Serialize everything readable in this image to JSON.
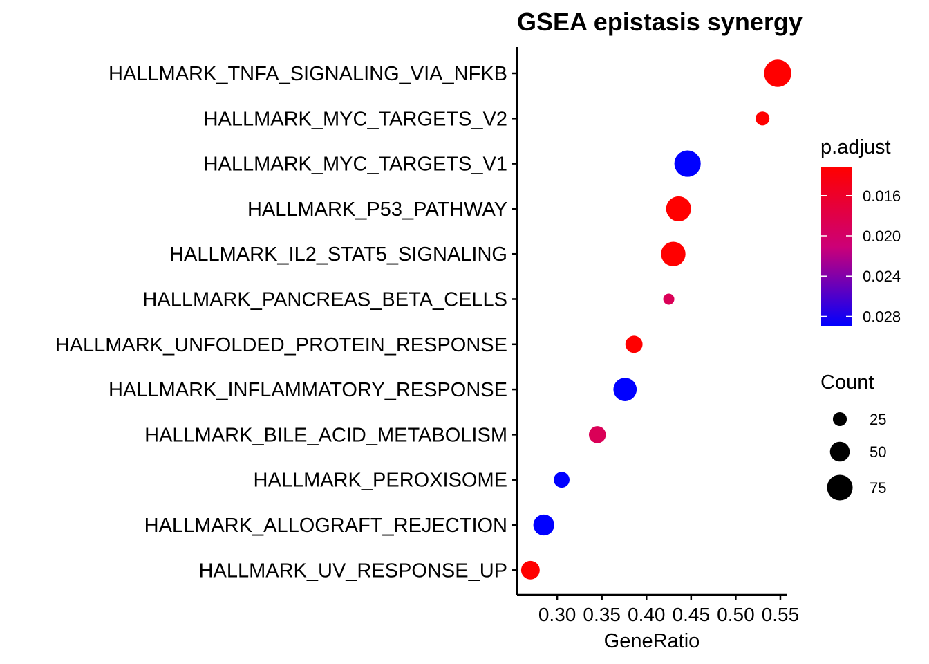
{
  "chart_data": {
    "type": "scatter",
    "title": "GSEA epistasis synergy",
    "xlabel": "GeneRatio",
    "ylabel": "",
    "xlim": [
      0.255,
      0.557
    ],
    "x_ticks": [
      "0.30",
      "0.35",
      "0.40",
      "0.45",
      "0.50",
      "0.55"
    ],
    "x_tick_values": [
      0.3,
      0.35,
      0.4,
      0.45,
      0.5,
      0.55
    ],
    "grid": false,
    "legend_position": "right",
    "points": [
      {
        "category": "HALLMARK_TNFA_SIGNALING_VIA_NFKB",
        "x": 0.547,
        "count": 82,
        "p_adjust": 0.0132
      },
      {
        "category": "HALLMARK_MYC_TARGETS_V2",
        "x": 0.53,
        "count": 25,
        "p_adjust": 0.0132
      },
      {
        "category": "HALLMARK_MYC_TARGETS_V1",
        "x": 0.446,
        "count": 78,
        "p_adjust": 0.029
      },
      {
        "category": "HALLMARK_P53_PATHWAY",
        "x": 0.436,
        "count": 72,
        "p_adjust": 0.0132
      },
      {
        "category": "HALLMARK_IL2_STAT5_SIGNALING",
        "x": 0.43,
        "count": 70,
        "p_adjust": 0.0132
      },
      {
        "category": "HALLMARK_PANCREAS_BETA_CELLS",
        "x": 0.425,
        "count": 13,
        "p_adjust": 0.019
      },
      {
        "category": "HALLMARK_UNFOLDED_PROTEIN_RESPONSE",
        "x": 0.386,
        "count": 39,
        "p_adjust": 0.0132
      },
      {
        "category": "HALLMARK_INFLAMMATORY_RESPONSE",
        "x": 0.376,
        "count": 65,
        "p_adjust": 0.029
      },
      {
        "category": "HALLMARK_BILE_ACID_METABOLISM",
        "x": 0.345,
        "count": 38,
        "p_adjust": 0.019
      },
      {
        "category": "HALLMARK_PEROXISOME",
        "x": 0.305,
        "count": 33,
        "p_adjust": 0.029
      },
      {
        "category": "HALLMARK_ALLOGRAFT_REJECTION",
        "x": 0.285,
        "count": 55,
        "p_adjust": 0.029
      },
      {
        "category": "HALLMARK_UV_RESPONSE_UP",
        "x": 0.27,
        "count": 45,
        "p_adjust": 0.0132
      }
    ],
    "color_legend": {
      "title": "p.adjust",
      "min": 0.0132,
      "max": 0.029,
      "low_color": "#ff0000",
      "mid_color": "#cc0077",
      "high_color": "#0000ff",
      "ticks": [
        {
          "value": 0.016,
          "label": "0.016"
        },
        {
          "value": 0.02,
          "label": "0.020"
        },
        {
          "value": 0.024,
          "label": "0.024"
        },
        {
          "value": 0.028,
          "label": "0.028"
        }
      ]
    },
    "size_legend": {
      "title": "Count",
      "items": [
        {
          "value": 25,
          "label": "25"
        },
        {
          "value": 50,
          "label": "50"
        },
        {
          "value": 75,
          "label": "75"
        }
      ]
    }
  }
}
